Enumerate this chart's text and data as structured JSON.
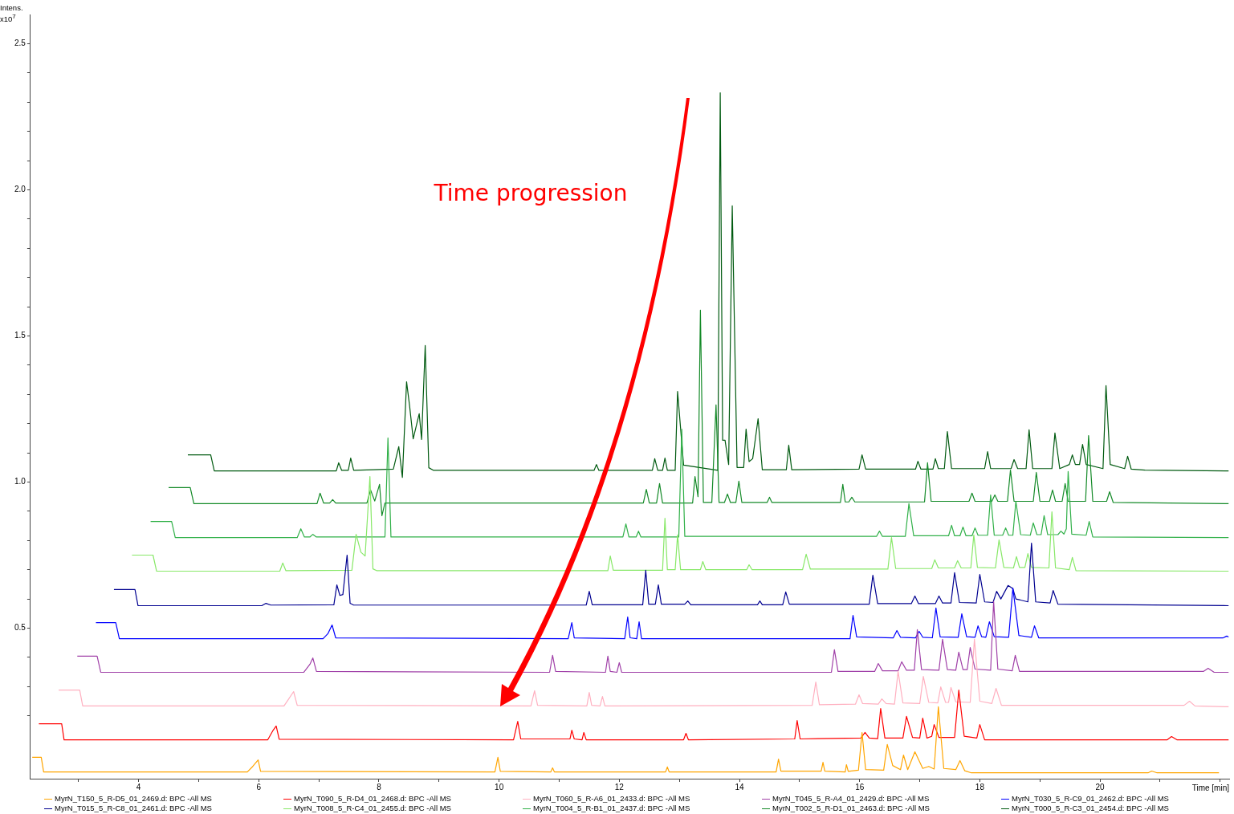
{
  "chart_data": {
    "type": "line",
    "ylabel": "Intens. x10$^{7}$",
    "xlabel": "Time [min]",
    "annotations": [
      "Time progression"
    ],
    "legend": "bottom",
    "marker": "none",
    "line_style": "solid",
    "grid": false,
    "xlim": [
      2.2,
      22.15
    ],
    "ylim": [
      -0.015,
      2.6
    ],
    "xticks": [
      {
        "value": 3,
        "label": null
      },
      4,
      {
        "value": 5,
        "label": null
      },
      6,
      {
        "value": 7,
        "label": null
      },
      8,
      {
        "value": 9,
        "label": null
      },
      10,
      {
        "value": 11,
        "label": null
      },
      12,
      {
        "value": 13,
        "label": null
      },
      14,
      {
        "value": 15,
        "label": null
      },
      16,
      {
        "value": 17,
        "label": null
      },
      18,
      {
        "value": 19,
        "label": null
      },
      20,
      {
        "value": 21,
        "label": null
      },
      {
        "value": 22,
        "label": null
      }
    ],
    "yticks": [
      {
        "value": 0.2,
        "label": null
      },
      {
        "value": 0.3,
        "label": null
      },
      {
        "value": 0.4,
        "label": null
      },
      0.5,
      {
        "value": 0.6,
        "label": null
      },
      {
        "value": 0.7,
        "label": null
      },
      {
        "value": 0.8,
        "label": null
      },
      {
        "value": 0.9,
        "label": null
      },
      {
        "value": 1,
        "label": "1.0"
      },
      {
        "value": 1.1,
        "label": null
      },
      {
        "value": 1.2,
        "label": null
      },
      {
        "value": 1.3,
        "label": null
      },
      {
        "value": 1.4,
        "label": null
      },
      1.5,
      {
        "value": 1.6,
        "label": null
      },
      {
        "value": 1.7,
        "label": null
      },
      {
        "value": 1.8,
        "label": null
      },
      {
        "value": 1.9,
        "label": null
      },
      {
        "value": 2,
        "label": "2.0"
      },
      {
        "value": 2.1,
        "label": null
      },
      {
        "value": 2.2,
        "label": null
      },
      {
        "value": 2.3,
        "label": null
      },
      {
        "value": 2.4,
        "label": null
      },
      2.5
    ],
    "series": [
      {
        "name": "MyrN_T150_5_R-D5_01_2469.d: BPC -All MS",
        "color": "#ffa500",
        "x": [
          2.23,
          2.38,
          2.42,
          5.81,
          5.9,
          5.99,
          6.03,
          9.93,
          9.98,
          10.02,
          10.86,
          10.89,
          10.92,
          12.77,
          12.8,
          12.83,
          14.61,
          14.65,
          14.69,
          15.36,
          15.39,
          15.42,
          15.76,
          15.78,
          15.81,
          15.98,
          16.04,
          16.1,
          16.4,
          16.46,
          16.55,
          16.68,
          16.73,
          16.8,
          16.92,
          17.05,
          17.15,
          17.24,
          17.31,
          17.4,
          17.6,
          17.67,
          17.75,
          17.86,
          20.8,
          20.86,
          20.95,
          21.98
        ],
        "values": [
          0.058,
          0.058,
          0.008,
          0.008,
          0.027,
          0.049,
          0.01,
          0.008,
          0.058,
          0.01,
          0.008,
          0.022,
          0.008,
          0.008,
          0.025,
          0.008,
          0.008,
          0.052,
          0.011,
          0.011,
          0.041,
          0.011,
          0.008,
          0.033,
          0.01,
          0.014,
          0.143,
          0.016,
          0.014,
          0.102,
          0.03,
          0.016,
          0.066,
          0.016,
          0.077,
          0.02,
          0.027,
          0.018,
          0.231,
          0.02,
          0.016,
          0.047,
          0.012,
          0.005,
          0.005,
          0.011,
          0.005,
          0.005
        ]
      },
      {
        "name": "MyrN_T090_5_R-D4_01_2468.d: BPC -All MS",
        "color": "#ff0000",
        "x": [
          2.34,
          2.72,
          2.76,
          6.15,
          6.24,
          6.29,
          6.34,
          10.24,
          10.31,
          10.36,
          11.18,
          11.21,
          11.25,
          11.38,
          11.41,
          11.45,
          13.07,
          13.11,
          13.15,
          14.92,
          14.96,
          15.01,
          16.02,
          16.09,
          16.16,
          16.3,
          16.35,
          16.42,
          16.72,
          16.78,
          16.88,
          17.0,
          17.05,
          17.12,
          17.2,
          17.24,
          17.32,
          17.58,
          17.65,
          17.74,
          17.95,
          18.0,
          18.08,
          21.12,
          21.19,
          21.28,
          22.14
        ],
        "values": [
          0.173,
          0.173,
          0.118,
          0.118,
          0.151,
          0.165,
          0.12,
          0.118,
          0.181,
          0.121,
          0.121,
          0.151,
          0.121,
          0.118,
          0.143,
          0.118,
          0.118,
          0.14,
          0.118,
          0.121,
          0.184,
          0.121,
          0.124,
          0.143,
          0.124,
          0.122,
          0.225,
          0.124,
          0.124,
          0.198,
          0.126,
          0.124,
          0.192,
          0.124,
          0.13,
          0.17,
          0.126,
          0.126,
          0.288,
          0.13,
          0.124,
          0.17,
          0.118,
          0.118,
          0.129,
          0.118,
          0.118
        ]
      },
      {
        "name": "MyrN_T060_5_R-A6_01_2433.d: BPC -All MS",
        "color": "#ffb0c0",
        "x": [
          2.67,
          3.02,
          3.07,
          6.42,
          6.49,
          6.58,
          6.64,
          10.53,
          10.59,
          10.64,
          11.46,
          11.5,
          11.54,
          11.68,
          11.72,
          11.76,
          15.21,
          15.27,
          15.33,
          15.93,
          15.99,
          16.05,
          16.31,
          16.37,
          16.44,
          16.58,
          16.64,
          16.72,
          17.0,
          17.06,
          17.15,
          17.3,
          17.35,
          17.43,
          17.48,
          17.52,
          17.6,
          17.84,
          17.91,
          18.0,
          18.2,
          18.27,
          18.36,
          21.4,
          21.49,
          21.58,
          22.14
        ],
        "values": [
          0.288,
          0.288,
          0.234,
          0.234,
          0.255,
          0.283,
          0.236,
          0.234,
          0.286,
          0.236,
          0.234,
          0.28,
          0.236,
          0.234,
          0.266,
          0.234,
          0.236,
          0.316,
          0.238,
          0.24,
          0.272,
          0.242,
          0.24,
          0.258,
          0.242,
          0.24,
          0.352,
          0.244,
          0.242,
          0.335,
          0.246,
          0.244,
          0.299,
          0.246,
          0.246,
          0.297,
          0.248,
          0.246,
          0.462,
          0.25,
          0.242,
          0.294,
          0.236,
          0.236,
          0.25,
          0.234,
          0.231
        ]
      },
      {
        "name": "MyrN_T045_5_R-A4_01_2429.d: BPC -All MS",
        "color": "#a040a8",
        "x": [
          2.98,
          3.31,
          3.37,
          6.75,
          6.85,
          6.9,
          6.96,
          10.84,
          10.89,
          10.94,
          11.77,
          11.81,
          11.85,
          11.96,
          12.0,
          12.04,
          15.53,
          15.58,
          15.64,
          16.25,
          16.31,
          16.38,
          16.64,
          16.7,
          16.78,
          16.91,
          16.96,
          17.03,
          17.32,
          17.38,
          17.46,
          17.6,
          17.65,
          17.72,
          17.79,
          17.84,
          17.92,
          18.18,
          18.23,
          18.3,
          18.54,
          18.59,
          18.66,
          21.72,
          21.8,
          21.9,
          22.14
        ],
        "values": [
          0.404,
          0.404,
          0.349,
          0.349,
          0.376,
          0.398,
          0.352,
          0.349,
          0.407,
          0.352,
          0.349,
          0.404,
          0.352,
          0.349,
          0.382,
          0.349,
          0.349,
          0.426,
          0.352,
          0.352,
          0.379,
          0.354,
          0.354,
          0.385,
          0.356,
          0.356,
          0.495,
          0.358,
          0.356,
          0.462,
          0.358,
          0.356,
          0.418,
          0.358,
          0.358,
          0.434,
          0.36,
          0.356,
          0.591,
          0.36,
          0.354,
          0.407,
          0.352,
          0.352,
          0.363,
          0.349,
          0.349
        ]
      },
      {
        "name": "MyrN_T030_5_R-C9_01_2462.d: BPC -All MS",
        "color": "#0000ff",
        "x": [
          3.29,
          3.62,
          3.68,
          7.07,
          7.15,
          7.22,
          7.28,
          11.15,
          11.21,
          11.25,
          12.09,
          12.14,
          12.18,
          12.29,
          12.33,
          12.37,
          15.84,
          15.89,
          15.95,
          16.56,
          16.62,
          16.68,
          16.93,
          16.99,
          17.05,
          17.21,
          17.27,
          17.34,
          17.64,
          17.7,
          17.78,
          17.92,
          17.97,
          18.03,
          18.1,
          18.16,
          18.24,
          18.48,
          18.55,
          18.65,
          18.86,
          18.91,
          18.98,
          22.05,
          22.11,
          22.14
        ],
        "values": [
          0.519,
          0.519,
          0.464,
          0.464,
          0.481,
          0.511,
          0.467,
          0.464,
          0.519,
          0.467,
          0.464,
          0.538,
          0.467,
          0.464,
          0.522,
          0.464,
          0.464,
          0.544,
          0.47,
          0.467,
          0.492,
          0.469,
          0.467,
          0.489,
          0.469,
          0.467,
          0.569,
          0.47,
          0.469,
          0.549,
          0.471,
          0.469,
          0.508,
          0.471,
          0.469,
          0.522,
          0.471,
          0.469,
          0.637,
          0.475,
          0.469,
          0.508,
          0.467,
          0.467,
          0.473,
          0.47
        ]
      },
      {
        "name": "MyrN_T015_5_R-C8_01_2461.d: BPC -All MS",
        "color": "#000090",
        "x": [
          3.59,
          3.94,
          3.99,
          6.05,
          6.12,
          6.2,
          7.25,
          7.3,
          7.35,
          7.4,
          7.47,
          7.52,
          7.58,
          11.45,
          11.5,
          11.55,
          12.39,
          12.44,
          12.49,
          12.6,
          12.65,
          12.7,
          13.09,
          13.14,
          13.19,
          14.3,
          14.34,
          14.38,
          14.72,
          14.77,
          14.83,
          16.16,
          16.22,
          16.3,
          16.86,
          16.92,
          16.98,
          17.26,
          17.32,
          17.38,
          17.52,
          17.58,
          17.66,
          17.94,
          18.0,
          18.08,
          18.22,
          18.28,
          18.35,
          18.47,
          18.55,
          18.6,
          18.8,
          18.86,
          18.93,
          19.17,
          19.22,
          19.3,
          22.14
        ],
        "values": [
          0.632,
          0.632,
          0.577,
          0.577,
          0.585,
          0.579,
          0.58,
          0.648,
          0.612,
          0.615,
          0.75,
          0.585,
          0.579,
          0.579,
          0.626,
          0.58,
          0.58,
          0.698,
          0.582,
          0.582,
          0.648,
          0.582,
          0.582,
          0.593,
          0.58,
          0.58,
          0.593,
          0.58,
          0.58,
          0.624,
          0.582,
          0.582,
          0.681,
          0.584,
          0.584,
          0.61,
          0.584,
          0.584,
          0.61,
          0.586,
          0.586,
          0.69,
          0.588,
          0.586,
          0.684,
          0.59,
          0.588,
          0.626,
          0.6,
          0.646,
          0.635,
          0.6,
          0.59,
          0.791,
          0.59,
          0.586,
          0.629,
          0.582,
          0.577
        ]
      },
      {
        "name": "MyrN_T008_5_R-C4_01_2455.d: BPC -All MS",
        "color": "#88e868",
        "x": [
          3.89,
          4.24,
          4.3,
          6.35,
          6.4,
          6.45,
          7.55,
          7.62,
          7.7,
          7.77,
          7.85,
          7.9,
          7.96,
          11.81,
          11.85,
          11.9,
          12.72,
          12.76,
          12.8,
          12.93,
          12.97,
          13.02,
          13.35,
          13.39,
          13.44,
          14.12,
          14.16,
          14.21,
          15.05,
          15.11,
          15.18,
          16.47,
          16.53,
          16.6,
          17.2,
          17.25,
          17.31,
          17.58,
          17.63,
          17.69,
          17.85,
          17.9,
          17.96,
          18.26,
          18.32,
          18.4,
          18.56,
          18.61,
          18.66,
          18.75,
          18.8,
          18.86,
          19.15,
          19.2,
          19.26,
          19.49,
          19.54,
          19.6,
          22.14
        ],
        "values": [
          0.75,
          0.75,
          0.695,
          0.695,
          0.723,
          0.697,
          0.698,
          0.821,
          0.76,
          0.747,
          1.019,
          0.703,
          0.697,
          0.697,
          0.747,
          0.698,
          0.698,
          0.876,
          0.7,
          0.7,
          0.819,
          0.7,
          0.7,
          0.728,
          0.7,
          0.7,
          0.717,
          0.7,
          0.7,
          0.753,
          0.702,
          0.702,
          0.81,
          0.704,
          0.704,
          0.734,
          0.706,
          0.706,
          0.731,
          0.706,
          0.706,
          0.819,
          0.708,
          0.706,
          0.802,
          0.708,
          0.706,
          0.745,
          0.708,
          0.708,
          0.755,
          0.708,
          0.706,
          0.898,
          0.706,
          0.7,
          0.742,
          0.697,
          0.695
        ]
      },
      {
        "name": "MyrN_T004_5_R-B1_01_2437.d: BPC -All MS",
        "color": "#30b048",
        "x": [
          4.2,
          4.55,
          4.61,
          6.64,
          6.7,
          6.76,
          6.85,
          6.9,
          6.96,
          8.1,
          8.15,
          8.2,
          12.06,
          12.11,
          12.16,
          12.28,
          12.32,
          12.36,
          12.99,
          13.04,
          13.09,
          16.28,
          16.33,
          16.38,
          16.76,
          16.82,
          16.9,
          17.48,
          17.53,
          17.58,
          17.67,
          17.72,
          17.77,
          17.87,
          17.92,
          17.97,
          18.13,
          18.18,
          18.24,
          18.38,
          18.43,
          18.48,
          18.55,
          18.6,
          18.68,
          18.84,
          18.89,
          18.95,
          19.02,
          19.07,
          19.13,
          19.3,
          19.35,
          19.4,
          19.44,
          19.47,
          19.53,
          19.77,
          19.82,
          19.88,
          22.14
        ],
        "values": [
          0.865,
          0.865,
          0.81,
          0.81,
          0.84,
          0.812,
          0.812,
          0.821,
          0.812,
          0.812,
          1.151,
          0.812,
          0.812,
          0.857,
          0.812,
          0.812,
          0.832,
          0.812,
          0.812,
          1.181,
          0.814,
          0.814,
          0.832,
          0.814,
          0.814,
          0.926,
          0.816,
          0.816,
          0.852,
          0.816,
          0.816,
          0.846,
          0.816,
          0.816,
          0.843,
          0.818,
          0.818,
          0.956,
          0.818,
          0.818,
          0.843,
          0.818,
          0.818,
          0.934,
          0.82,
          0.818,
          0.86,
          0.82,
          0.82,
          0.885,
          0.82,
          0.82,
          0.832,
          0.822,
          0.84,
          1.036,
          0.822,
          0.818,
          0.865,
          0.812,
          0.81
        ]
      },
      {
        "name": "MyrN_T002_5_R-D1_01_2463.d: BPC -All MS",
        "color": "#148a28",
        "x": [
          4.5,
          4.86,
          4.92,
          6.97,
          7.02,
          7.08,
          7.18,
          7.23,
          7.28,
          7.8,
          7.86,
          7.93,
          8.01,
          8.05,
          8.1,
          12.4,
          12.45,
          12.5,
          12.62,
          12.67,
          12.72,
          13.22,
          13.26,
          13.31,
          13.35,
          13.4,
          13.54,
          13.61,
          13.66,
          13.75,
          13.8,
          13.85,
          13.94,
          13.99,
          14.04,
          14.46,
          14.5,
          14.54,
          15.68,
          15.72,
          15.76,
          15.82,
          15.87,
          15.92,
          17.08,
          17.13,
          17.19,
          17.82,
          17.87,
          17.92,
          18.2,
          18.25,
          18.3,
          18.46,
          18.51,
          18.57,
          18.89,
          18.94,
          19.0,
          19.16,
          19.21,
          19.26,
          19.37,
          19.42,
          19.47,
          19.76,
          19.81,
          19.88,
          20.11,
          20.16,
          20.22,
          22.14
        ],
        "values": [
          0.981,
          0.981,
          0.926,
          0.926,
          0.962,
          0.928,
          0.928,
          0.94,
          0.928,
          0.928,
          0.973,
          0.935,
          0.992,
          0.885,
          0.928,
          0.928,
          0.975,
          0.928,
          0.928,
          0.995,
          0.928,
          0.928,
          1.019,
          0.95,
          1.588,
          0.93,
          0.93,
          1.264,
          0.93,
          0.93,
          0.959,
          0.93,
          0.93,
          1.003,
          0.93,
          0.93,
          0.948,
          0.93,
          0.93,
          0.992,
          0.932,
          0.932,
          0.948,
          0.932,
          0.932,
          1.066,
          0.934,
          0.934,
          0.962,
          0.934,
          0.934,
          0.956,
          0.934,
          0.934,
          1.041,
          0.934,
          0.934,
          1.033,
          0.934,
          0.934,
          0.973,
          0.934,
          0.934,
          0.995,
          0.934,
          0.934,
          1.159,
          0.934,
          0.934,
          0.967,
          0.93,
          0.926
        ]
      },
      {
        "name": "MyrN_T000_5_R-C3_01_2454.d: BPC -All MS",
        "color": "#005a10",
        "x": [
          4.82,
          5.2,
          5.26,
          7.29,
          7.33,
          7.38,
          7.49,
          7.53,
          7.58,
          8.24,
          8.33,
          8.39,
          8.46,
          8.51,
          8.57,
          8.67,
          8.71,
          8.77,
          8.83,
          8.91,
          11.58,
          11.62,
          11.66,
          12.55,
          12.59,
          12.64,
          12.72,
          12.76,
          12.8,
          12.93,
          12.97,
          13.07,
          13.64,
          13.68,
          13.72,
          13.76,
          13.82,
          13.88,
          13.96,
          14.07,
          14.11,
          14.16,
          14.22,
          14.31,
          14.38,
          14.78,
          14.82,
          14.87,
          15.99,
          16.04,
          16.1,
          16.93,
          16.97,
          17.02,
          17.22,
          17.26,
          17.31,
          17.41,
          17.46,
          17.53,
          18.08,
          18.13,
          18.18,
          18.52,
          18.57,
          18.63,
          18.77,
          18.82,
          18.88,
          19.2,
          19.25,
          19.33,
          19.49,
          19.54,
          19.59,
          19.66,
          19.71,
          19.77,
          20.05,
          20.1,
          20.17,
          20.41,
          20.46,
          20.52,
          20.75,
          22.14
        ],
        "values": [
          1.093,
          1.093,
          1.038,
          1.038,
          1.066,
          1.04,
          1.04,
          1.082,
          1.04,
          1.044,
          1.121,
          1.016,
          1.343,
          1.261,
          1.148,
          1.234,
          1.146,
          1.467,
          1.049,
          1.04,
          1.04,
          1.06,
          1.04,
          1.04,
          1.08,
          1.04,
          1.04,
          1.082,
          1.04,
          1.04,
          1.31,
          1.058,
          1.04,
          2.332,
          1.143,
          1.143,
          1.06,
          1.945,
          1.05,
          1.05,
          1.181,
          1.07,
          1.08,
          1.217,
          1.042,
          1.042,
          1.126,
          1.042,
          1.044,
          1.093,
          1.044,
          1.044,
          1.071,
          1.044,
          1.044,
          1.08,
          1.046,
          1.046,
          1.173,
          1.046,
          1.046,
          1.104,
          1.046,
          1.046,
          1.077,
          1.046,
          1.046,
          1.179,
          1.046,
          1.046,
          1.168,
          1.046,
          1.06,
          1.093,
          1.06,
          1.06,
          1.129,
          1.06,
          1.046,
          1.33,
          1.06,
          1.046,
          1.088,
          1.044,
          1.041,
          1.038
        ]
      }
    ]
  }
}
